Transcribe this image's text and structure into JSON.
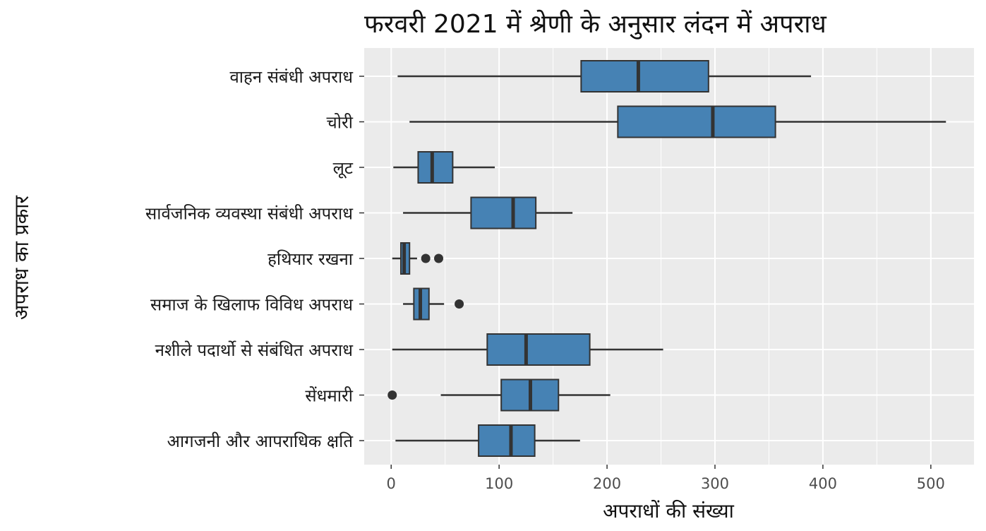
{
  "chart_data": {
    "type": "box",
    "orientation": "horizontal",
    "title": "फरवरी 2021 में श्रेणी के अनुसार लंदन में अपराध",
    "xlabel": "अपराधों की संख्या",
    "ylabel": "अपराध का प्रकार",
    "xlim": [
      -25,
      540
    ],
    "x_ticks": [
      0,
      100,
      200,
      300,
      400,
      500
    ],
    "grid": true,
    "fill_color": "#4682B4",
    "panel_color": "#EBEBEB",
    "categories": [
      "वाहन संबंधी अपराध",
      "चोरी",
      "लूट",
      "सार्वजनिक व्यवस्था संबंधी अपराध",
      "हथियार रखना",
      "समाज के खिलाफ विविध अपराध",
      "नशीले पदार्थो से संबंधित अपराध",
      "सेंधमारी",
      "आगजनी और आपराधिक क्षति"
    ],
    "boxes": [
      {
        "whisker_low": 6,
        "q1": 176,
        "median": 229,
        "q3": 294,
        "whisker_high": 389,
        "outliers": []
      },
      {
        "whisker_low": 17,
        "q1": 210,
        "median": 298,
        "q3": 356,
        "whisker_high": 514,
        "outliers": []
      },
      {
        "whisker_low": 2,
        "q1": 25,
        "median": 38,
        "q3": 57,
        "whisker_high": 96,
        "outliers": []
      },
      {
        "whisker_low": 11,
        "q1": 74,
        "median": 113,
        "q3": 134,
        "whisker_high": 168,
        "outliers": []
      },
      {
        "whisker_low": 1,
        "q1": 9,
        "median": 12,
        "q3": 17,
        "whisker_high": 24,
        "outliers": [
          32,
          44
        ]
      },
      {
        "whisker_low": 11,
        "q1": 21,
        "median": 27,
        "q3": 35,
        "whisker_high": 49,
        "outliers": [
          63
        ]
      },
      {
        "whisker_low": 1,
        "q1": 89,
        "median": 125,
        "q3": 184,
        "whisker_high": 252,
        "outliers": []
      },
      {
        "whisker_low": 46,
        "q1": 102,
        "median": 129,
        "q3": 155,
        "whisker_high": 203,
        "outliers": [
          1
        ]
      },
      {
        "whisker_low": 4,
        "q1": 81,
        "median": 111,
        "q3": 133,
        "whisker_high": 175,
        "outliers": []
      }
    ]
  }
}
